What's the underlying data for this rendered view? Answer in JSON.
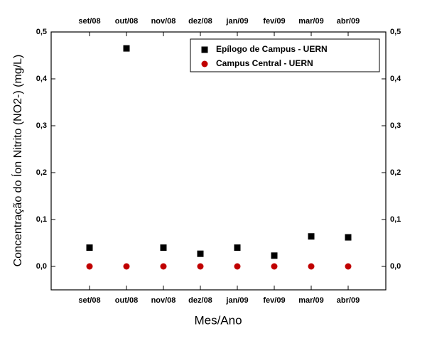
{
  "chart_data": {
    "type": "scatter",
    "x_label": "Mes/Ano",
    "y_label": "Concentração do Íon Nitrito (NO2-) (mg/L)",
    "categories": [
      "set/08",
      "out/08",
      "nov/08",
      "dez/08",
      "jan/09",
      "fev/09",
      "mar/09",
      "abr/09"
    ],
    "series": [
      {
        "name": "Epílogo de Campus - UERN",
        "color": "#000000",
        "marker": "square",
        "values": [
          0.04,
          0.465,
          0.04,
          0.027,
          0.04,
          0.023,
          0.064,
          0.062
        ]
      },
      {
        "name": "Campus Central - UERN",
        "color": "#c00000",
        "marker": "circle",
        "values": [
          0,
          0,
          0,
          0,
          0,
          0,
          0,
          0
        ]
      }
    ],
    "ylim": [
      -0.05,
      0.5
    ],
    "yticks": [
      {
        "value": 0.0,
        "label": "0,0"
      },
      {
        "value": 0.1,
        "label": "0,1"
      },
      {
        "value": 0.2,
        "label": "0,2"
      },
      {
        "value": 0.3,
        "label": "0,3"
      },
      {
        "value": 0.4,
        "label": "0,4"
      },
      {
        "value": 0.5,
        "label": "0,5"
      }
    ],
    "legend": "upper right"
  }
}
